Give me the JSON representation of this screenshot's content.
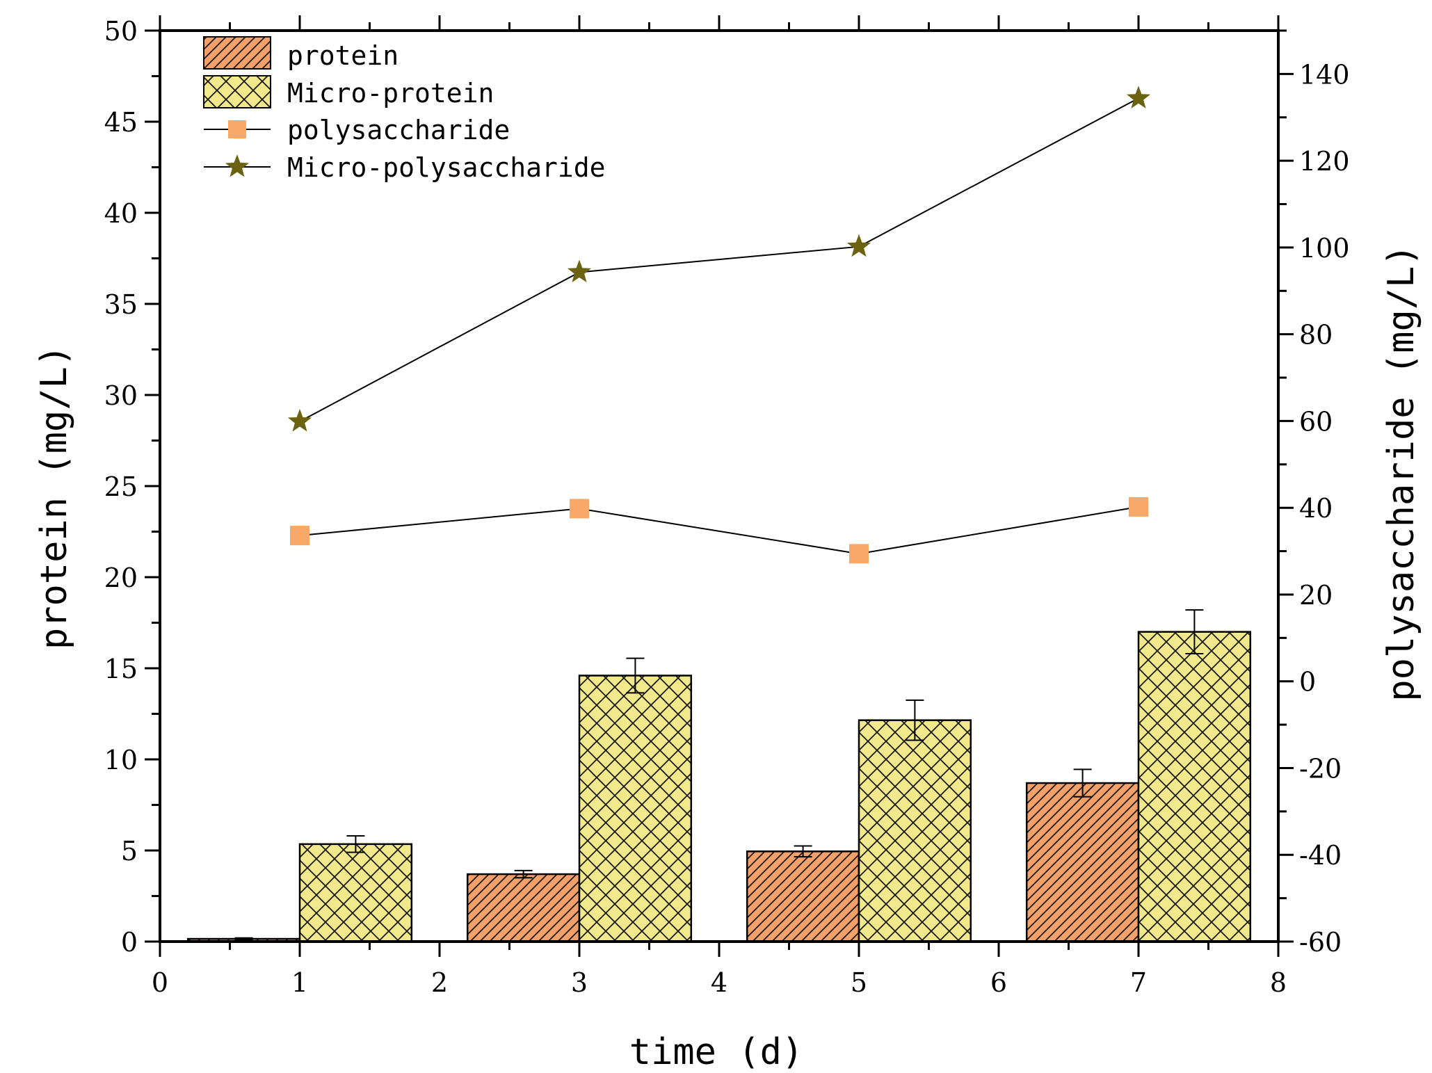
{
  "chart_data": {
    "type": "bar",
    "title": "",
    "xlabel": "time (d)",
    "ylabel_left": "protein (mg/L)",
    "ylabel_right": "polysaccharide (mg/L)",
    "xlim": [
      0,
      8
    ],
    "xticks": [
      "0",
      "1",
      "2",
      "3",
      "4",
      "5",
      "6",
      "7",
      "8"
    ],
    "ylim_left": [
      0,
      50
    ],
    "yticks_left": [
      "0",
      "5",
      "10",
      "15",
      "20",
      "25",
      "30",
      "35",
      "40",
      "45",
      "50"
    ],
    "ylim_right": [
      -60,
      150
    ],
    "yticks_right": [
      "-60",
      "-40",
      "-20",
      "0",
      "20",
      "40",
      "60",
      "80",
      "100",
      "120",
      "140"
    ],
    "legend_position": "top-left",
    "grid": false,
    "bar_series": [
      {
        "name": "protein",
        "color": "#f4a06a",
        "hatch": "diagonal",
        "x": [
          1,
          3,
          5,
          7
        ],
        "values": [
          0.15,
          3.7,
          4.95,
          8.7
        ],
        "errors": [
          0.05,
          0.2,
          0.3,
          0.75
        ]
      },
      {
        "name": "Micro-protein",
        "color": "#f2e88c",
        "hatch": "crosshatch",
        "x": [
          1,
          3,
          5,
          7
        ],
        "values": [
          5.35,
          14.6,
          12.15,
          17.0
        ],
        "errors": [
          0.45,
          0.95,
          1.1,
          1.2
        ]
      }
    ],
    "line_series": [
      {
        "name": "polysaccharide",
        "marker": "square",
        "color": "#f8a868",
        "axis": "right",
        "x": [
          1,
          3,
          5,
          7
        ],
        "values": [
          33.6,
          39.8,
          29.4,
          40.2
        ]
      },
      {
        "name": "Micro-polysaccharide",
        "marker": "star",
        "color": "#6b6310",
        "axis": "right",
        "x": [
          1,
          3,
          5,
          7
        ],
        "values": [
          59.9,
          94.3,
          100.2,
          134.4
        ]
      }
    ]
  }
}
